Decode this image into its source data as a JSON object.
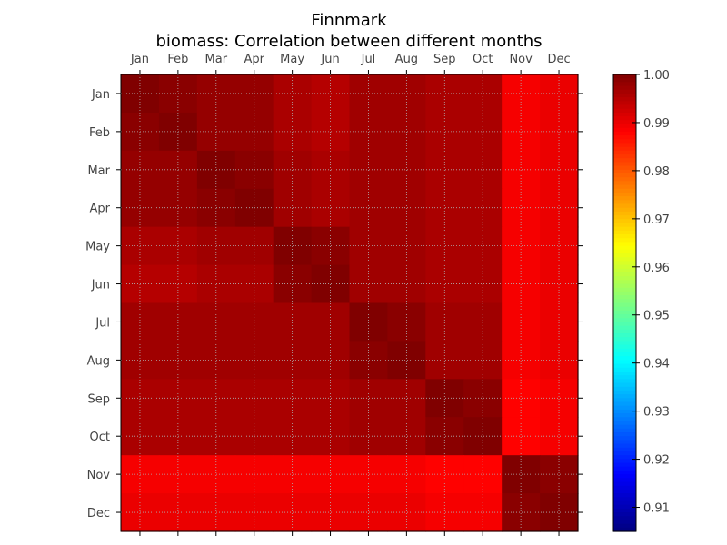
{
  "chart_data": {
    "type": "heatmap",
    "title": "Finnmark",
    "subtitle": "biomass: Correlation between different months",
    "x_categories": [
      "Jan",
      "Feb",
      "Mar",
      "Apr",
      "May",
      "Jun",
      "Jul",
      "Aug",
      "Sep",
      "Oct",
      "Nov",
      "Dec"
    ],
    "y_categories": [
      "Jan",
      "Feb",
      "Mar",
      "Apr",
      "May",
      "Jun",
      "Jul",
      "Aug",
      "Sep",
      "Oct",
      "Nov",
      "Dec"
    ],
    "colormap": "jet",
    "vmin": 0.905,
    "vmax": 1.0,
    "colorbar_ticks": [
      "0.91",
      "0.92",
      "0.93",
      "0.94",
      "0.95",
      "0.96",
      "0.97",
      "0.98",
      "0.99",
      "1.00"
    ],
    "grid": true,
    "cells": [
      [
        [
          1.0,
          0.999,
          0.998,
          0.998,
          0.996,
          0.995,
          0.997,
          0.997,
          0.996,
          0.996,
          0.989,
          0.99
        ],
        [
          0.999,
          1.0,
          0.998,
          0.998,
          0.996,
          0.995,
          0.997,
          0.997,
          0.996,
          0.996,
          0.989,
          0.99
        ],
        [
          0.998,
          0.998,
          1.0,
          0.999,
          0.997,
          0.996,
          0.997,
          0.997,
          0.996,
          0.996,
          0.989,
          0.99
        ],
        [
          0.998,
          0.998,
          0.999,
          1.0,
          0.997,
          0.996,
          0.997,
          0.997,
          0.996,
          0.996,
          0.989,
          0.99
        ],
        [
          0.996,
          0.996,
          0.997,
          0.997,
          1.0,
          0.999,
          0.997,
          0.997,
          0.996,
          0.996,
          0.989,
          0.99
        ],
        [
          0.995,
          0.995,
          0.996,
          0.996,
          0.999,
          1.0,
          0.997,
          0.997,
          0.996,
          0.996,
          0.989,
          0.99
        ],
        [
          0.997,
          0.997,
          0.997,
          0.997,
          0.997,
          0.997,
          1.0,
          0.999,
          0.997,
          0.997,
          0.989,
          0.99
        ],
        [
          0.997,
          0.997,
          0.997,
          0.997,
          0.997,
          0.997,
          0.999,
          1.0,
          0.997,
          0.997,
          0.989,
          0.99
        ],
        [
          0.996,
          0.996,
          0.996,
          0.996,
          0.996,
          0.996,
          0.997,
          0.997,
          1.0,
          0.999,
          0.988,
          0.989
        ],
        [
          0.996,
          0.996,
          0.996,
          0.996,
          0.996,
          0.996,
          0.997,
          0.997,
          0.999,
          1.0,
          0.988,
          0.989
        ],
        [
          0.989,
          0.989,
          0.989,
          0.989,
          0.989,
          0.989,
          0.989,
          0.989,
          0.988,
          0.988,
          1.0,
          0.999
        ],
        [
          0.99,
          0.99,
          0.99,
          0.99,
          0.99,
          0.99,
          0.99,
          0.99,
          0.989,
          0.989,
          0.999,
          1.0
        ]
      ]
    ]
  }
}
